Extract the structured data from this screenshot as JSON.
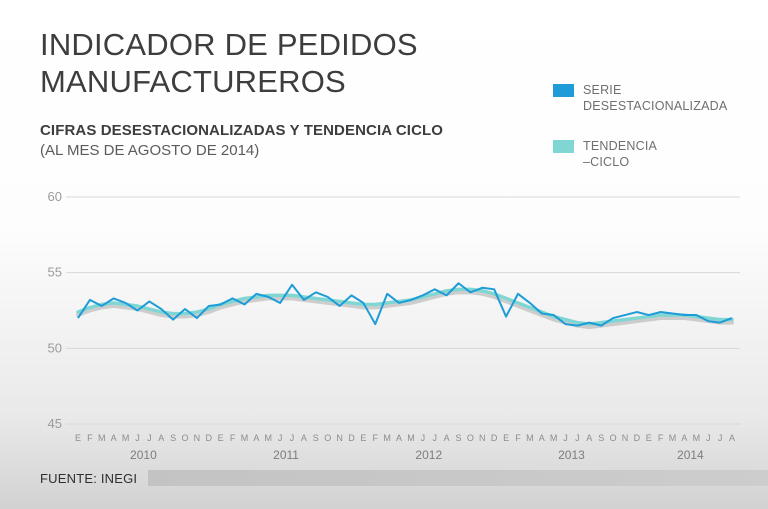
{
  "header": {
    "title_line1": "INDICADOR DE PEDIDOS",
    "title_line2": "MANUFACTUREROS",
    "subtitle": "CIFRAS DESESTACIONALIZADAS Y TENDENCIA CICLO",
    "subtitle2": "(AL MES DE AGOSTO DE 2014)"
  },
  "legend": [
    {
      "label_line1": "SERIE",
      "label_line2": "DESESTACIONALIZADA",
      "color": "#1e9cd7"
    },
    {
      "label_line1": "TENDENCIA",
      "label_line2": "–CICLO",
      "color": "#7fd6d2"
    }
  ],
  "footer": {
    "source": "FUENTE: INEGI"
  },
  "chart_data": {
    "type": "line",
    "title": "INDICADOR DE PEDIDOS MANUFACTUREROS",
    "subtitle": "CIFRAS DESESTACIONALIZADAS Y TENDENCIA CICLO (AL MES DE AGOSTO DE 2014)",
    "xlabel": "",
    "ylabel": "",
    "ylim": [
      45,
      60
    ],
    "yticks": [
      60,
      55,
      50,
      45
    ],
    "grid": true,
    "legend_position": "top-right",
    "x_month_labels": [
      "E",
      "F",
      "M",
      "A",
      "M",
      "J",
      "J",
      "A",
      "S",
      "O",
      "N",
      "D",
      "E",
      "F",
      "M",
      "A",
      "M",
      "J",
      "J",
      "A",
      "S",
      "O",
      "N",
      "D",
      "E",
      "F",
      "M",
      "A",
      "M",
      "J",
      "J",
      "A",
      "S",
      "O",
      "N",
      "D",
      "E",
      "F",
      "M",
      "A",
      "M",
      "J",
      "J",
      "A",
      "S",
      "O",
      "N",
      "D",
      "E",
      "F",
      "M",
      "A",
      "M",
      "J",
      "J",
      "A"
    ],
    "years": [
      {
        "label": "2010",
        "start_index": 0,
        "end_index": 11
      },
      {
        "label": "2011",
        "start_index": 12,
        "end_index": 23
      },
      {
        "label": "2012",
        "start_index": 24,
        "end_index": 35
      },
      {
        "label": "2013",
        "start_index": 36,
        "end_index": 47
      },
      {
        "label": "2014",
        "start_index": 48,
        "end_index": 55
      }
    ],
    "series": [
      {
        "name": "SERIE DESESTACIONALIZADA",
        "color": "#1e9cd7",
        "values": [
          52.0,
          53.2,
          52.8,
          53.3,
          53.0,
          52.5,
          53.1,
          52.6,
          51.9,
          52.6,
          52.0,
          52.8,
          52.9,
          53.3,
          52.9,
          53.6,
          53.4,
          53.0,
          54.2,
          53.2,
          53.7,
          53.4,
          52.8,
          53.5,
          53.0,
          51.6,
          53.6,
          53.0,
          53.2,
          53.5,
          53.9,
          53.5,
          54.3,
          53.7,
          54.0,
          53.9,
          52.1,
          53.6,
          53.0,
          52.3,
          52.2,
          51.6,
          51.5,
          51.7,
          51.5,
          52.0,
          52.2,
          52.4,
          52.2,
          52.4,
          52.3,
          52.2,
          52.2,
          51.8,
          51.7,
          52.0
        ]
      },
      {
        "name": "TENDENCIA-CICLO",
        "color": "#7fd6d2",
        "values": [
          52.4,
          52.7,
          52.9,
          53.0,
          52.9,
          52.8,
          52.6,
          52.4,
          52.3,
          52.3,
          52.4,
          52.6,
          52.9,
          53.1,
          53.3,
          53.4,
          53.5,
          53.5,
          53.5,
          53.4,
          53.3,
          53.2,
          53.1,
          53.0,
          52.9,
          52.9,
          53.0,
          53.1,
          53.2,
          53.4,
          53.6,
          53.8,
          53.9,
          53.9,
          53.8,
          53.6,
          53.3,
          53.0,
          52.7,
          52.4,
          52.1,
          51.9,
          51.7,
          51.6,
          51.7,
          51.8,
          51.9,
          52.0,
          52.1,
          52.2,
          52.2,
          52.2,
          52.1,
          52.0,
          51.9,
          51.9
        ]
      }
    ]
  }
}
